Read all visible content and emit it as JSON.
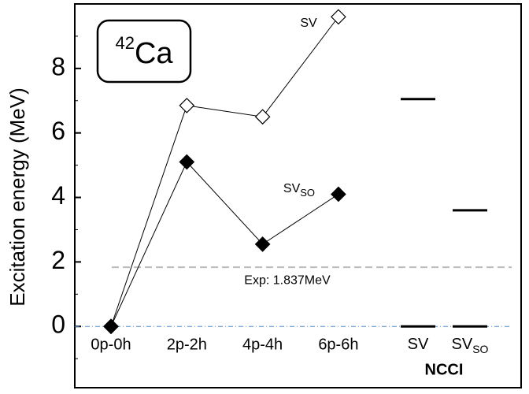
{
  "chart_data": {
    "type": "line",
    "y_label": "Excitation energy (MeV)",
    "ylim": [
      -1.9,
      10
    ],
    "yticks": [
      0,
      2,
      4,
      6,
      8
    ],
    "categories": [
      "0p-0h",
      "2p-2h",
      "4p-4h",
      "6p-6h"
    ],
    "series": [
      {
        "name": "SV",
        "color": "#000000",
        "fill": "#ffffff",
        "values": [
          0,
          6.85,
          6.5,
          9.6
        ]
      },
      {
        "name": "SV",
        "name_sub": "SO",
        "color": "#000000",
        "fill": "#000000",
        "values": [
          0,
          5.1,
          2.55,
          4.1
        ]
      }
    ],
    "reference": {
      "value": 1.837,
      "label": "Exp: 1.837MeV",
      "color": "#bbbbbb"
    },
    "ncci": {
      "label": "NCCI",
      "columns": [
        {
          "name": "SV",
          "values": [
            7.05,
            0
          ]
        },
        {
          "name": "SV",
          "name_sub": "SO",
          "values": [
            3.6,
            0
          ]
        }
      ]
    },
    "nucleus": {
      "mass": "42",
      "symbol": "Ca"
    }
  }
}
